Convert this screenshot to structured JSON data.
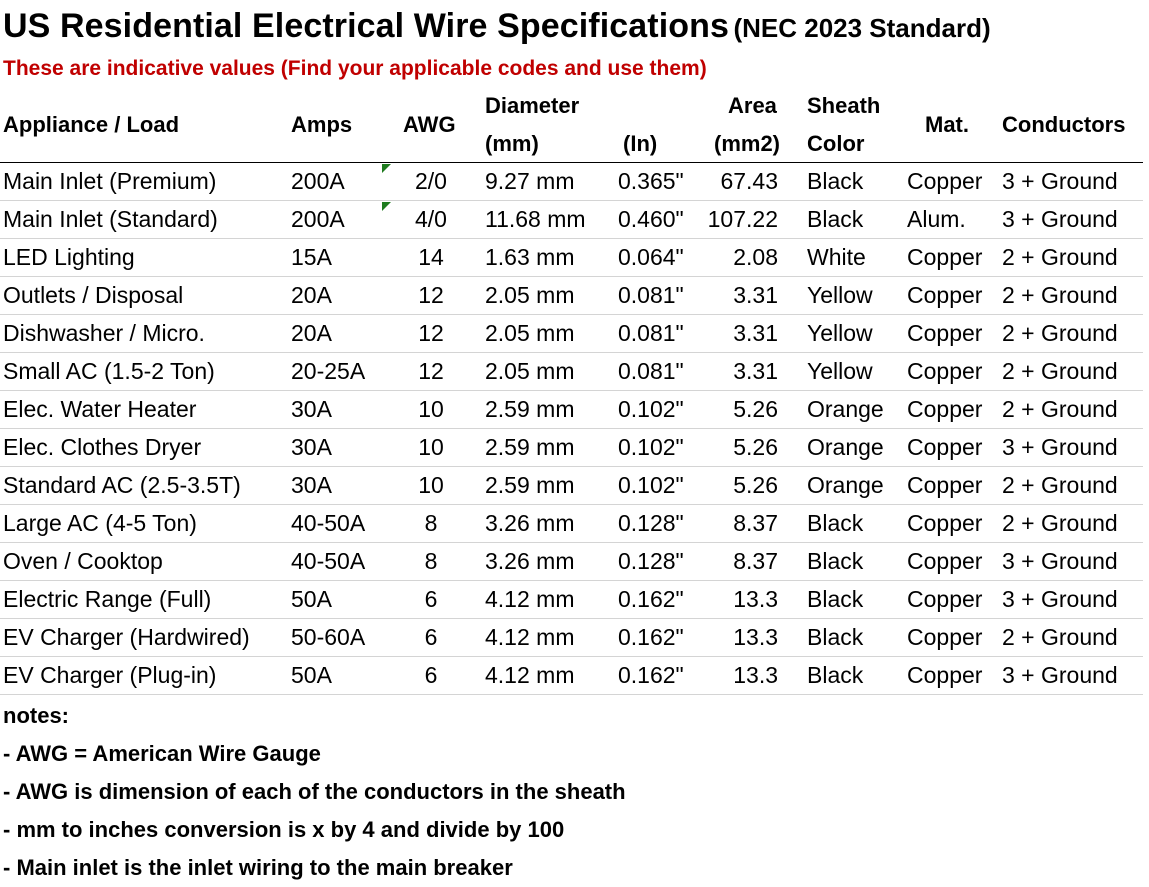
{
  "title": "US Residential Electrical Wire Specifications",
  "title_standard": "(NEC 2023 Standard)",
  "subtitle": "These are indicative values (Find your applicable codes and use them)",
  "headers": {
    "appliance": "Appliance / Load",
    "amps": "Amps",
    "awg": "AWG",
    "diameter": "Diameter",
    "mm": "(mm)",
    "in": "(In)",
    "area": "Area",
    "area_unit": "(mm2)",
    "sheath": "Sheath",
    "color": "Color",
    "mat": "Mat.",
    "conductors": "Conductors"
  },
  "rows": [
    {
      "appliance": "Main Inlet (Premium)",
      "amps": "200A",
      "awg": "2/0",
      "mm": "9.27 mm",
      "in": "0.365\"",
      "area": "67.43",
      "color": "Black",
      "mat": "Copper",
      "conductors": "3 + Ground"
    },
    {
      "appliance": "Main Inlet (Standard)",
      "amps": "200A",
      "awg": "4/0",
      "mm": "11.68 mm",
      "in": "0.460\"",
      "area": "107.22",
      "color": "Black",
      "mat": "Alum.",
      "conductors": "3 + Ground"
    },
    {
      "appliance": "LED Lighting",
      "amps": "15A",
      "awg": "14",
      "mm": "1.63 mm",
      "in": "0.064\"",
      "area": "2.08",
      "color": "White",
      "mat": "Copper",
      "conductors": "2 + Ground"
    },
    {
      "appliance": "Outlets / Disposal",
      "amps": "20A",
      "awg": "12",
      "mm": "2.05 mm",
      "in": "0.081\"",
      "area": "3.31",
      "color": "Yellow",
      "mat": "Copper",
      "conductors": "2 + Ground"
    },
    {
      "appliance": "Dishwasher / Micro.",
      "amps": "20A",
      "awg": "12",
      "mm": "2.05 mm",
      "in": "0.081\"",
      "area": "3.31",
      "color": "Yellow",
      "mat": "Copper",
      "conductors": "2 + Ground"
    },
    {
      "appliance": "Small AC (1.5-2 Ton)",
      "amps": "20-25A",
      "awg": "12",
      "mm": "2.05 mm",
      "in": "0.081\"",
      "area": "3.31",
      "color": "Yellow",
      "mat": "Copper",
      "conductors": "2 + Ground"
    },
    {
      "appliance": "Elec. Water Heater",
      "amps": "30A",
      "awg": "10",
      "mm": "2.59 mm",
      "in": "0.102\"",
      "area": "5.26",
      "color": "Orange",
      "mat": "Copper",
      "conductors": "2 + Ground"
    },
    {
      "appliance": "Elec. Clothes Dryer",
      "amps": "30A",
      "awg": "10",
      "mm": "2.59 mm",
      "in": "0.102\"",
      "area": "5.26",
      "color": "Orange",
      "mat": "Copper",
      "conductors": "3 + Ground"
    },
    {
      "appliance": "Standard AC (2.5-3.5T)",
      "amps": "30A",
      "awg": "10",
      "mm": "2.59 mm",
      "in": "0.102\"",
      "area": "5.26",
      "color": "Orange",
      "mat": "Copper",
      "conductors": "2 + Ground"
    },
    {
      "appliance": "Large AC (4-5 Ton)",
      "amps": "40-50A",
      "awg": "8",
      "mm": "3.26 mm",
      "in": "0.128\"",
      "area": "8.37",
      "color": "Black",
      "mat": "Copper",
      "conductors": "2 + Ground"
    },
    {
      "appliance": "Oven / Cooktop",
      "amps": "40-50A",
      "awg": "8",
      "mm": "3.26 mm",
      "in": "0.128\"",
      "area": "8.37",
      "color": "Black",
      "mat": "Copper",
      "conductors": "3 + Ground"
    },
    {
      "appliance": "Electric Range (Full)",
      "amps": "50A",
      "awg": "6",
      "mm": "4.12 mm",
      "in": "0.162\"",
      "area": "13.3",
      "color": "Black",
      "mat": "Copper",
      "conductors": "3 + Ground"
    },
    {
      "appliance": "EV Charger (Hardwired)",
      "amps": "50-60A",
      "awg": "6",
      "mm": "4.12 mm",
      "in": "0.162\"",
      "area": "13.3",
      "color": "Black",
      "mat": "Copper",
      "conductors": "2 + Ground"
    },
    {
      "appliance": "EV Charger (Plug-in)",
      "amps": "50A",
      "awg": "6",
      "mm": "4.12 mm",
      "in": "0.162\"",
      "area": "13.3",
      "color": "Black",
      "mat": "Copper",
      "conductors": "3 + Ground"
    }
  ],
  "notes": [
    "notes:",
    "- AWG = American Wire Gauge",
    "- AWG is dimension of each of the conductors in the sheath",
    "- mm to inches conversion is x by 4 and divide by 100",
    "- Main inlet is the inlet wiring to the main breaker"
  ],
  "colors": {
    "subtitle": "#c00000",
    "comment_flag": "#1e7b1e",
    "row_border": "#d4d4d4"
  }
}
